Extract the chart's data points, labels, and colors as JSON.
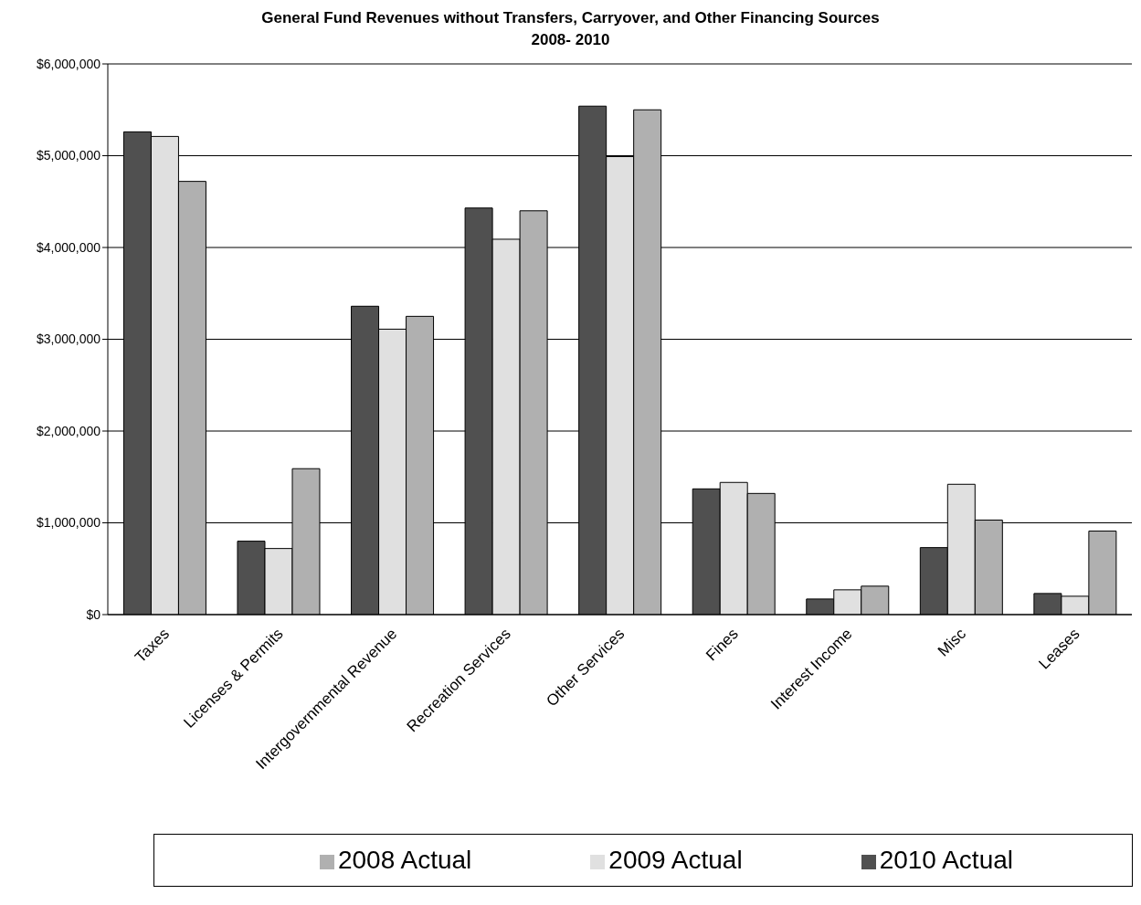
{
  "chart_data": {
    "type": "bar",
    "title": "General Fund Revenues without Transfers, Carryover, and Other Financing Sources",
    "subtitle": "2008- 2010",
    "categories": [
      "Taxes",
      "Licenses & Permits",
      "Intergovernmental Revenue",
      "Recreation Services",
      "Other Services",
      "Fines",
      "Interest Income",
      "Misc",
      "Leases"
    ],
    "series": [
      {
        "name": "2010 Actual",
        "color": "#505050",
        "values": [
          5260000,
          800000,
          3360000,
          4430000,
          5540000,
          1370000,
          170000,
          730000,
          230000
        ]
      },
      {
        "name": "2009 Actual",
        "color": "#e0e0e0",
        "values": [
          5210000,
          720000,
          3110000,
          4090000,
          4990000,
          1440000,
          270000,
          1420000,
          200000
        ]
      },
      {
        "name": "2008 Actual",
        "color": "#b0b0b0",
        "values": [
          4720000,
          1590000,
          3250000,
          4400000,
          5500000,
          1320000,
          310000,
          1030000,
          910000
        ]
      }
    ],
    "ylim": [
      0,
      6000000
    ],
    "yticks": [
      {
        "value": 0,
        "label": "$0"
      },
      {
        "value": 1000000,
        "label": "$1,000,000"
      },
      {
        "value": 2000000,
        "label": "$2,000,000"
      },
      {
        "value": 3000000,
        "label": "$3,000,000"
      },
      {
        "value": 4000000,
        "label": "$4,000,000"
      },
      {
        "value": 5000000,
        "label": "$5,000,000"
      },
      {
        "value": 6000000,
        "label": "$6,000,000"
      }
    ],
    "grid": "y",
    "legend": "bottom"
  }
}
